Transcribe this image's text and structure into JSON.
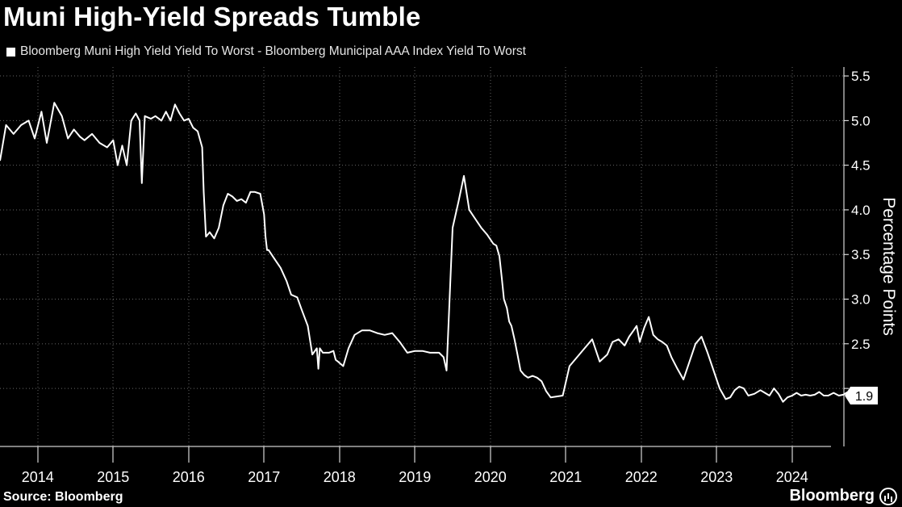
{
  "title": "Muni High-Yield Spreads Tumble",
  "legend_label": "Bloomberg Muni High Yield Yield To Worst - Bloomberg Municipal AAA Index Yield To Worst",
  "source": "Source: Bloomberg",
  "brand": "Bloomberg",
  "colors": {
    "background": "#000000",
    "line": "#ffffff",
    "grid": "#666666"
  },
  "chart_data": {
    "type": "line",
    "ylabel": "Percentage Points",
    "ylim": [
      1.35,
      5.6
    ],
    "y_ticks": [
      "2.5",
      "3.0",
      "3.5",
      "4.0",
      "4.5",
      "5.0",
      "5.5"
    ],
    "x_ticks": [
      "2014",
      "2015",
      "2016",
      "2017",
      "2018",
      "2019",
      "2020",
      "2021",
      "2022",
      "2023",
      "2024"
    ],
    "last_value_label": "1.9",
    "series": [
      {
        "x": [
          2013.5,
          2013.58,
          2013.68,
          2013.78,
          2013.88,
          2013.96,
          2014.05,
          2014.12,
          2014.22,
          2014.32,
          2014.4,
          2014.48,
          2014.56,
          2014.62,
          2014.72,
          2014.82,
          2014.92,
          2015.0,
          2015.06,
          2015.12,
          2015.18,
          2015.24,
          2015.3,
          2015.35,
          2015.38,
          2015.42,
          2015.5,
          2015.56,
          2015.64,
          2015.7,
          2015.76,
          2015.82,
          2015.88,
          2015.94,
          2016.0,
          2016.06,
          2016.12,
          2016.18,
          2016.2,
          2016.23,
          2016.28,
          2016.34,
          2016.4,
          2016.46,
          2016.52,
          2016.58,
          2016.64,
          2016.7,
          2016.76,
          2016.82,
          2016.88,
          2016.95,
          2017.0,
          2017.02,
          2017.04,
          2017.06,
          2017.14,
          2017.22,
          2017.3,
          2017.36,
          2017.44,
          2017.5,
          2017.58,
          2017.64,
          2017.7,
          2017.72,
          2017.74,
          2017.78,
          2017.86,
          2017.92,
          2017.95,
          2017.98,
          2018.05,
          2018.12,
          2018.2,
          2018.3,
          2018.4,
          2018.5,
          2018.6,
          2018.7,
          2018.8,
          2018.9,
          2019.0,
          2019.1,
          2019.2,
          2019.32,
          2019.38,
          2019.42,
          2019.5,
          2019.58,
          2019.65,
          2019.72,
          2019.8,
          2019.88,
          2019.96,
          2020.04,
          2020.08,
          2020.12,
          2020.15,
          2020.18,
          2020.22,
          2020.25,
          2020.28,
          2020.32,
          2020.36,
          2020.4,
          2020.45,
          2020.5,
          2020.56,
          2020.62,
          2020.68,
          2020.74,
          2020.8,
          2020.88,
          2020.96,
          2021.05,
          2021.15,
          2021.25,
          2021.35,
          2021.45,
          2021.55,
          2021.62,
          2021.7,
          2021.78,
          2021.84,
          2021.9,
          2021.94,
          2021.98,
          2022.04,
          2022.1,
          2022.16,
          2022.22,
          2022.28,
          2022.34,
          2022.4,
          2022.48,
          2022.56,
          2022.64,
          2022.72,
          2022.8,
          2022.88,
          2022.96,
          2023.04,
          2023.12,
          2023.18,
          2023.24,
          2023.3,
          2023.36,
          2023.42,
          2023.5,
          2023.58,
          2023.64,
          2023.7,
          2023.76,
          2023.82,
          2023.88,
          2023.94,
          2024.0,
          2024.06,
          2024.12,
          2024.18,
          2024.24,
          2024.3,
          2024.36,
          2024.42,
          2024.48,
          2024.55,
          2024.62,
          2024.68,
          2024.74,
          2024.8,
          2024.86,
          2024.9,
          2024.94
        ],
        "y": [
          4.55,
          4.95,
          4.85,
          4.95,
          5.0,
          4.8,
          5.1,
          4.75,
          5.2,
          5.05,
          4.8,
          4.9,
          4.82,
          4.78,
          4.85,
          4.75,
          4.7,
          4.78,
          4.5,
          4.72,
          4.5,
          5.0,
          5.08,
          5.0,
          4.3,
          5.05,
          5.02,
          5.05,
          5.0,
          5.1,
          5.0,
          5.18,
          5.08,
          5.0,
          5.02,
          4.92,
          4.88,
          4.7,
          4.2,
          3.7,
          3.75,
          3.68,
          3.8,
          4.05,
          4.18,
          4.15,
          4.1,
          4.12,
          4.08,
          4.2,
          4.2,
          4.18,
          3.95,
          3.7,
          3.55,
          3.55,
          3.45,
          3.35,
          3.2,
          3.05,
          3.02,
          2.88,
          2.7,
          2.38,
          2.45,
          2.22,
          2.45,
          2.4,
          2.4,
          2.42,
          2.32,
          2.3,
          2.25,
          2.45,
          2.6,
          2.65,
          2.65,
          2.62,
          2.6,
          2.62,
          2.52,
          2.4,
          2.42,
          2.42,
          2.4,
          2.4,
          2.35,
          2.2,
          3.8,
          4.1,
          4.38,
          4.0,
          3.9,
          3.8,
          3.72,
          3.62,
          3.6,
          3.48,
          3.25,
          3.0,
          2.9,
          2.75,
          2.7,
          2.55,
          2.38,
          2.2,
          2.15,
          2.12,
          2.14,
          2.12,
          2.08,
          1.97,
          1.9,
          1.91,
          1.92,
          2.25,
          2.35,
          2.45,
          2.55,
          2.3,
          2.38,
          2.52,
          2.55,
          2.48,
          2.58,
          2.65,
          2.7,
          2.52,
          2.68,
          2.8,
          2.6,
          2.55,
          2.52,
          2.48,
          2.35,
          2.22,
          2.1,
          2.3,
          2.5,
          2.58,
          2.4,
          2.2,
          2.0,
          1.88,
          1.9,
          1.98,
          2.02,
          2.0,
          1.92,
          1.94,
          1.98,
          1.95,
          1.92,
          2.0,
          1.94,
          1.85,
          1.9,
          1.92,
          1.95,
          1.92,
          1.93,
          1.92,
          1.93,
          1.96,
          1.92,
          1.92,
          1.95,
          1.92,
          1.93,
          1.96,
          1.92,
          1.94,
          1.95,
          1.92
        ]
      }
    ]
  }
}
